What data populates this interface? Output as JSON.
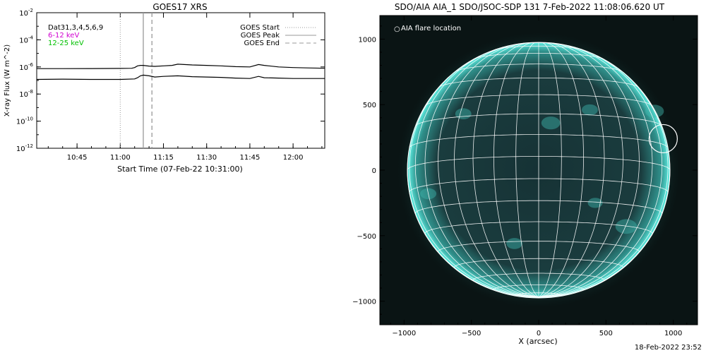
{
  "chart_data": [
    {
      "type": "line",
      "title": "GOES17 XRS",
      "ylabel": "X-ray Flux (W m^-2)",
      "xlabel": "Start Time (07-Feb-22 10:31:00)",
      "ylim": [
        1e-12,
        0.01
      ],
      "yscale": "log",
      "xlim": [
        "10:31",
        "12:11"
      ],
      "x_ticks": [
        "10:45",
        "11:00",
        "11:15",
        "11:30",
        "11:45",
        "12:00"
      ],
      "y_ticks": [
        "10^-2",
        "10^-4",
        "10^-6",
        "10^-8",
        "10^-10",
        "10^-12"
      ],
      "legend_left": [
        {
          "text": "Dat31,3,4,5,6,9",
          "color": "#000000"
        },
        {
          "text": "6-12 keV",
          "color": "#d000d0"
        },
        {
          "text": "12-25 keV",
          "color": "#00c000"
        }
      ],
      "legend_right": [
        {
          "text": "GOES Start",
          "style": "dotted"
        },
        {
          "text": "GOES Peak",
          "style": "solid"
        },
        {
          "text": "GOES End",
          "style": "dashed"
        }
      ],
      "event_lines": {
        "start": "11:00",
        "peak": "11:08",
        "end": "11:11"
      },
      "series": [
        {
          "channel": "long",
          "x": [
            "10:31",
            "10:40",
            "10:50",
            "11:00",
            "11:04",
            "11:05",
            "11:06",
            "11:07",
            "11:08",
            "11:10",
            "11:12",
            "11:15",
            "11:18",
            "11:20",
            "11:25",
            "11:30",
            "11:35",
            "11:40",
            "11:45",
            "11:48",
            "11:50",
            "11:55",
            "12:00",
            "12:05",
            "12:11"
          ],
          "y": [
            7.5e-07,
            7.5e-07,
            7.6e-07,
            7.8e-07,
            8e-07,
            9e-07,
            1.2e-06,
            1.3e-06,
            1.3e-06,
            1.15e-06,
            1.1e-06,
            1.2e-06,
            1.3e-06,
            1.6e-06,
            1.4e-06,
            1.3e-06,
            1.2e-06,
            1.05e-06,
            1e-06,
            1.5e-06,
            1.3e-06,
            1e-06,
            9e-07,
            8.5e-07,
            8e-07
          ]
        },
        {
          "channel": "short",
          "x": [
            "10:31",
            "10:40",
            "10:50",
            "11:00",
            "11:05",
            "11:06",
            "11:07",
            "11:08",
            "11:10",
            "11:12",
            "11:15",
            "11:20",
            "11:25",
            "11:30",
            "11:35",
            "11:40",
            "11:45",
            "11:48",
            "11:50",
            "11:55",
            "12:00",
            "12:05",
            "12:11"
          ],
          "y": [
            1.2e-07,
            1.25e-07,
            1.2e-07,
            1.2e-07,
            1.3e-07,
            1.6e-07,
            2.2e-07,
            2.5e-07,
            2.2e-07,
            1.8e-07,
            2e-07,
            2.2e-07,
            1.9e-07,
            1.8e-07,
            1.7e-07,
            1.5e-07,
            1.4e-07,
            2e-07,
            1.6e-07,
            1.5e-07,
            1.4e-07,
            1.4e-07,
            1.4e-07
          ]
        }
      ]
    },
    {
      "type": "image",
      "title": "SDO/AIA AIA_1 SDO/JSOC-SDP 131  7-Feb-2022 11:08:06.620 UT",
      "xlabel": "X (arcsec)",
      "xlim": [
        -1180,
        1180
      ],
      "ylim": [
        -1180,
        1180
      ],
      "x_ticks": [
        "−1000",
        "−500",
        "0",
        "500",
        "1000"
      ],
      "y_ticks": [
        "1000",
        "500",
        "0",
        "−500",
        "−1000"
      ],
      "solar_radius_arcsec": 975,
      "grid_spacing_deg": 10,
      "legend": "AIA flare location",
      "flare_location_arcsec": [
        925,
        240
      ],
      "colors": {
        "background": "#0a1414",
        "disk": "#173638",
        "limb": "#3fd6cc",
        "grid": "#ffffff"
      }
    }
  ],
  "footer": {
    "timestamp": "18-Feb-2022 23:52"
  }
}
